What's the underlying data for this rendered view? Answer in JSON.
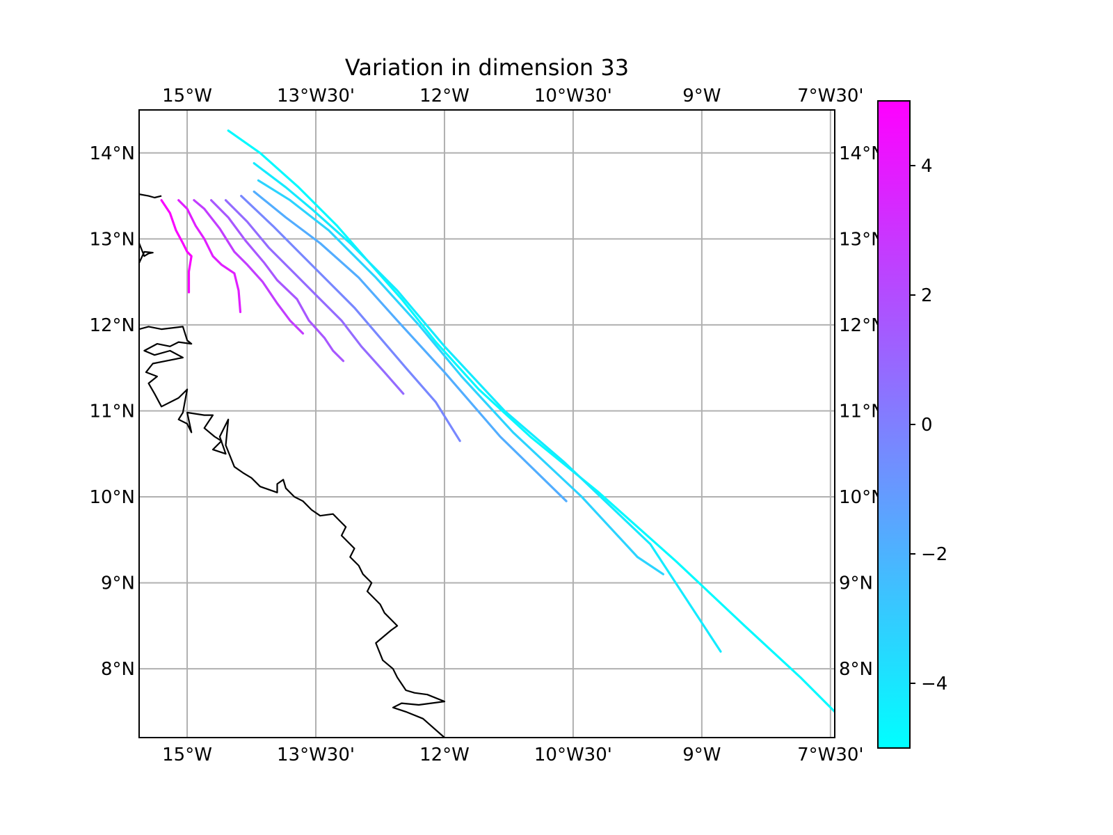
{
  "title": "Variation in dimension 33",
  "map": {
    "lon_range": [
      -15.56,
      -7.45
    ],
    "lat_range": [
      7.2,
      14.5
    ],
    "x_ticks": [
      {
        "lon": -15.0,
        "label": "15°W"
      },
      {
        "lon": -13.5,
        "label": "13°W30'"
      },
      {
        "lon": -12.0,
        "label": "12°W"
      },
      {
        "lon": -10.5,
        "label": "10°W30'"
      },
      {
        "lon": -9.0,
        "label": "9°W"
      },
      {
        "lon": -7.5,
        "label": "7°W30'"
      }
    ],
    "y_ticks": [
      {
        "lat": 14,
        "label": "14°N"
      },
      {
        "lat": 13,
        "label": "13°N"
      },
      {
        "lat": 12,
        "label": "12°N"
      },
      {
        "lat": 11,
        "label": "11°N"
      },
      {
        "lat": 10,
        "label": "10°N"
      },
      {
        "lat": 9,
        "label": "9°N"
      },
      {
        "lat": 8,
        "label": "8°N"
      }
    ],
    "gridlines": true,
    "coastline": [
      [
        [
          -15.56,
          13.52
        ],
        [
          -15.45,
          13.5
        ],
        [
          -15.38,
          13.48
        ],
        [
          -15.3,
          13.5
        ]
      ],
      [
        [
          -15.56,
          12.95
        ],
        [
          -15.5,
          12.8
        ],
        [
          -15.45,
          12.83
        ],
        [
          -15.4,
          12.84
        ],
        [
          -15.5,
          12.85
        ],
        [
          -15.56,
          12.72
        ]
      ],
      [
        [
          -15.56,
          11.95
        ],
        [
          -15.45,
          11.98
        ],
        [
          -15.3,
          11.95
        ],
        [
          -15.05,
          11.98
        ],
        [
          -15.0,
          11.82
        ],
        [
          -14.95,
          11.78
        ],
        [
          -15.1,
          11.8
        ],
        [
          -15.2,
          11.75
        ],
        [
          -15.35,
          11.78
        ],
        [
          -15.5,
          11.7
        ],
        [
          -15.38,
          11.65
        ],
        [
          -15.2,
          11.7
        ],
        [
          -15.05,
          11.62
        ],
        [
          -15.25,
          11.58
        ],
        [
          -15.4,
          11.55
        ],
        [
          -15.48,
          11.45
        ],
        [
          -15.35,
          11.4
        ],
        [
          -15.45,
          11.32
        ],
        [
          -15.38,
          11.2
        ],
        [
          -15.3,
          11.05
        ],
        [
          -15.1,
          11.15
        ],
        [
          -15.0,
          11.25
        ],
        [
          -15.05,
          10.98
        ],
        [
          -15.1,
          10.9
        ],
        [
          -15.0,
          10.85
        ],
        [
          -14.95,
          10.75
        ],
        [
          -15.0,
          10.98
        ],
        [
          -14.8,
          10.95
        ],
        [
          -14.7,
          10.95
        ],
        [
          -14.8,
          10.8
        ],
        [
          -14.68,
          10.7
        ],
        [
          -14.6,
          10.65
        ],
        [
          -14.7,
          10.55
        ],
        [
          -14.55,
          10.5
        ],
        [
          -14.62,
          10.7
        ],
        [
          -14.52,
          10.9
        ],
        [
          -14.55,
          10.6
        ],
        [
          -14.45,
          10.35
        ],
        [
          -14.35,
          10.28
        ],
        [
          -14.25,
          10.22
        ],
        [
          -14.15,
          10.12
        ],
        [
          -13.95,
          10.05
        ],
        [
          -13.95,
          10.15
        ],
        [
          -13.88,
          10.2
        ],
        [
          -13.85,
          10.1
        ],
        [
          -13.75,
          10.0
        ],
        [
          -13.65,
          9.95
        ],
        [
          -13.55,
          9.85
        ],
        [
          -13.45,
          9.78
        ],
        [
          -13.3,
          9.8
        ],
        [
          -13.22,
          9.72
        ],
        [
          -13.15,
          9.65
        ],
        [
          -13.2,
          9.55
        ],
        [
          -13.05,
          9.4
        ],
        [
          -13.1,
          9.3
        ],
        [
          -13.0,
          9.2
        ],
        [
          -12.95,
          9.1
        ],
        [
          -12.85,
          9.0
        ],
        [
          -12.9,
          8.9
        ],
        [
          -12.75,
          8.75
        ],
        [
          -12.7,
          8.65
        ],
        [
          -12.55,
          8.5
        ],
        [
          -12.62,
          8.45
        ],
        [
          -12.8,
          8.3
        ],
        [
          -12.72,
          8.1
        ],
        [
          -12.6,
          8.0
        ],
        [
          -12.55,
          7.9
        ],
        [
          -12.45,
          7.75
        ],
        [
          -12.35,
          7.72
        ],
        [
          -12.2,
          7.7
        ],
        [
          -12.0,
          7.62
        ],
        [
          -12.3,
          7.58
        ],
        [
          -12.5,
          7.6
        ],
        [
          -12.6,
          7.55
        ],
        [
          -12.45,
          7.5
        ],
        [
          -12.25,
          7.42
        ],
        [
          -12.0,
          7.2
        ]
      ]
    ]
  },
  "chart_data": {
    "type": "line",
    "title": "Variation in dimension 33",
    "xlim": [
      -15.56,
      -7.45
    ],
    "ylim": [
      7.2,
      14.5
    ],
    "grid": true,
    "series": [
      {
        "values": [
          [
            -14.52,
            14.26
          ],
          [
            -14.15,
            14.0
          ],
          [
            -13.7,
            13.6
          ],
          [
            -13.25,
            13.15
          ],
          [
            -12.9,
            12.75
          ],
          [
            -12.5,
            12.3
          ],
          [
            -12.1,
            11.8
          ],
          [
            -11.6,
            11.25
          ],
          [
            -11.0,
            10.7
          ],
          [
            -10.2,
            10.05
          ],
          [
            -9.3,
            9.25
          ],
          [
            -8.5,
            8.5
          ],
          [
            -7.85,
            7.9
          ],
          [
            -7.25,
            7.3
          ]
        ],
        "level": -4.8
      },
      {
        "values": [
          [
            -14.22,
            13.88
          ],
          [
            -13.85,
            13.6
          ],
          [
            -13.55,
            13.35
          ],
          [
            -13.1,
            12.95
          ],
          [
            -12.55,
            12.4
          ],
          [
            -12.0,
            11.75
          ],
          [
            -11.3,
            11.0
          ],
          [
            -10.6,
            10.4
          ],
          [
            -9.6,
            9.45
          ],
          [
            -8.78,
            8.2
          ]
        ],
        "level": -4.2
      },
      {
        "values": [
          [
            -14.17,
            13.68
          ],
          [
            -13.8,
            13.45
          ],
          [
            -13.35,
            13.1
          ],
          [
            -12.8,
            12.55
          ],
          [
            -12.3,
            12.0
          ],
          [
            -11.8,
            11.4
          ],
          [
            -11.2,
            10.75
          ],
          [
            -10.4,
            10.0
          ],
          [
            -9.75,
            9.3
          ],
          [
            -9.45,
            9.1
          ]
        ],
        "level": -3.3
      },
      {
        "values": [
          [
            -14.22,
            13.55
          ],
          [
            -13.85,
            13.25
          ],
          [
            -13.45,
            12.95
          ],
          [
            -13.0,
            12.55
          ],
          [
            -12.55,
            12.05
          ],
          [
            -12.0,
            11.45
          ],
          [
            -11.35,
            10.7
          ],
          [
            -10.58,
            9.95
          ]
        ],
        "level": -1.8
      },
      {
        "values": [
          [
            -14.37,
            13.5
          ],
          [
            -14.0,
            13.15
          ],
          [
            -13.7,
            12.85
          ],
          [
            -13.35,
            12.5
          ],
          [
            -13.05,
            12.2
          ],
          [
            -12.75,
            11.85
          ],
          [
            -12.45,
            11.5
          ],
          [
            -12.1,
            11.1
          ],
          [
            -11.82,
            10.65
          ]
        ],
        "level": -0.3
      },
      {
        "values": [
          [
            -14.55,
            13.45
          ],
          [
            -14.3,
            13.2
          ],
          [
            -14.05,
            12.9
          ],
          [
            -13.75,
            12.6
          ],
          [
            -13.5,
            12.35
          ],
          [
            -13.2,
            12.05
          ],
          [
            -12.97,
            11.75
          ],
          [
            -12.7,
            11.45
          ],
          [
            -12.48,
            11.2
          ]
        ],
        "level": 0.8
      },
      {
        "values": [
          [
            -14.72,
            13.45
          ],
          [
            -14.52,
            13.25
          ],
          [
            -14.32,
            12.98
          ],
          [
            -14.1,
            12.72
          ],
          [
            -13.95,
            12.52
          ],
          [
            -13.72,
            12.3
          ],
          [
            -13.58,
            12.05
          ],
          [
            -13.4,
            11.85
          ],
          [
            -13.3,
            11.7
          ],
          [
            -13.18,
            11.58
          ]
        ],
        "level": 1.6
      },
      {
        "values": [
          [
            -14.92,
            13.45
          ],
          [
            -14.8,
            13.35
          ],
          [
            -14.62,
            13.12
          ],
          [
            -14.45,
            12.85
          ],
          [
            -14.3,
            12.7
          ],
          [
            -14.12,
            12.5
          ],
          [
            -13.95,
            12.25
          ],
          [
            -13.8,
            12.05
          ],
          [
            -13.65,
            11.9
          ]
        ],
        "level": 2.6
      },
      {
        "values": [
          [
            -15.1,
            13.45
          ],
          [
            -15.0,
            13.35
          ],
          [
            -14.9,
            13.15
          ],
          [
            -14.8,
            13.0
          ],
          [
            -14.7,
            12.8
          ],
          [
            -14.6,
            12.7
          ],
          [
            -14.45,
            12.6
          ],
          [
            -14.4,
            12.4
          ],
          [
            -14.38,
            12.15
          ]
        ],
        "level": 3.8
      },
      {
        "values": [
          [
            -15.3,
            13.45
          ],
          [
            -15.2,
            13.3
          ],
          [
            -15.13,
            13.1
          ],
          [
            -15.05,
            12.95
          ],
          [
            -15.0,
            12.85
          ],
          [
            -14.95,
            12.8
          ],
          [
            -14.98,
            12.62
          ],
          [
            -14.98,
            12.38
          ]
        ],
        "level": 4.8
      }
    ]
  },
  "colorbar": {
    "min": -5,
    "max": 5,
    "color_low": "#00ffff",
    "color_high": "#ff00ff",
    "ticks": [
      {
        "value": 4,
        "label": "4"
      },
      {
        "value": 2,
        "label": "2"
      },
      {
        "value": 0,
        "label": "0"
      },
      {
        "value": -2,
        "label": "−2"
      },
      {
        "value": -4,
        "label": "−4"
      }
    ]
  }
}
